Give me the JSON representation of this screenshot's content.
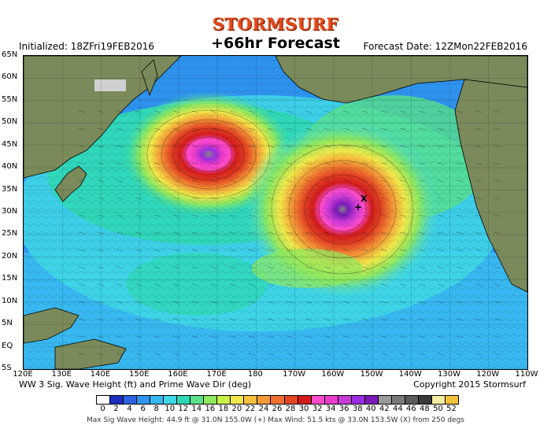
{
  "header": {
    "brand": "STORMSURF",
    "title": "+66hr Forecast",
    "initialized": "Initialized: 18ZFri19FEB2016",
    "forecast_date": "Forecast Date: 12ZMon22FEB2016"
  },
  "map": {
    "lat_labels": [
      "65N",
      "60N",
      "55N",
      "50N",
      "45N",
      "40N",
      "35N",
      "30N",
      "25N",
      "20N",
      "15N",
      "10N",
      "5N",
      "EQ",
      "5S"
    ],
    "lon_labels": [
      "120E",
      "130E",
      "140E",
      "150E",
      "160E",
      "170E",
      "180",
      "170W",
      "160W",
      "150W",
      "140W",
      "130W",
      "120W",
      "110W"
    ]
  },
  "footer": {
    "product": "WW 3 Sig. Wave Height (ft) and Prime Wave Dir (deg)",
    "copyright": "Copyright 2015 Stormsurf",
    "scale_labels": [
      "0",
      "2",
      "4",
      "6",
      "8",
      "10",
      "12",
      "14",
      "16",
      "18",
      "20",
      "22",
      "24",
      "26",
      "28",
      "30",
      "32",
      "34",
      "36",
      "38",
      "40",
      "42",
      "44",
      "46",
      "48",
      "50",
      "52"
    ],
    "scale_colors": [
      "#ffffff",
      "#1a2fc0",
      "#2d63e0",
      "#2e93ee",
      "#38b8f0",
      "#3fd8e6",
      "#2ed8b2",
      "#58e08a",
      "#8ee860",
      "#c8f048",
      "#f0e84a",
      "#f6c040",
      "#f49a38",
      "#f07030",
      "#e44624",
      "#d21c1c",
      "#ff4ccc",
      "#e83ccc",
      "#c83ad8",
      "#9a2ee0",
      "#7a1ab8",
      "#9a9a9a",
      "#7a7a7a",
      "#5a5a5a",
      "#3a3a3a",
      "#f6eea0",
      "#f4c23c"
    ],
    "stats": "Max Sig Wave Height: 44.9 ft @ 31.0N 155.0W (+)   Max Wind: 51.5 kts @ 33.0N 153.5W (X) from 250 degs"
  }
}
